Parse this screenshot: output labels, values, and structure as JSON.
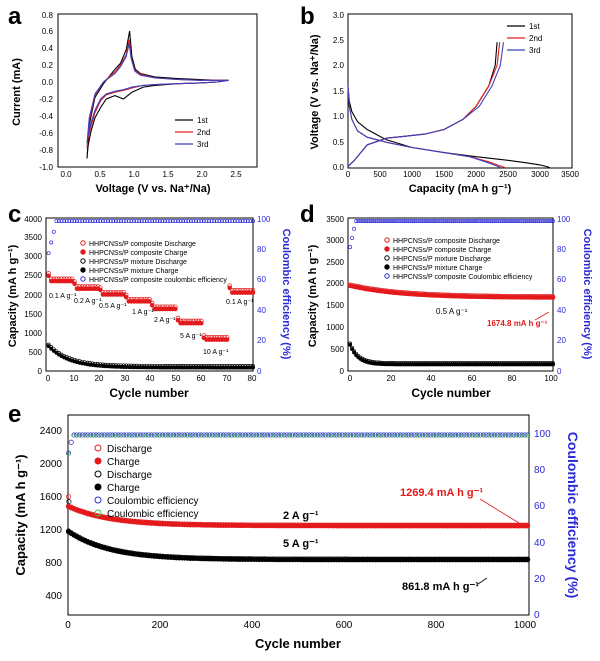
{
  "chart_data": [
    {
      "panel": "a",
      "type": "line",
      "xlabel": "Voltage (V vs. Na⁺/Na)",
      "ylabel": "Current (mA)",
      "xlim": [
        -0.5,
        3.0
      ],
      "ylim": [
        -1.0,
        0.8
      ],
      "xticks": [
        "0.0",
        "0.5",
        "1.0",
        "1.5",
        "2.0",
        "2.5"
      ],
      "yticks": [
        "-1.0",
        "-0.8",
        "-0.6",
        "-0.4",
        "-0.2",
        "0.0",
        "0.2",
        "0.4",
        "0.6",
        "0.8"
      ],
      "legend_position": "bottom-right",
      "series": [
        {
          "name": "1st",
          "color": "#000000",
          "x": [
            0.01,
            0.05,
            0.15,
            0.3,
            0.5,
            0.6,
            0.7,
            0.76,
            0.8,
            0.86,
            0.95,
            1.2,
            1.6,
            2.0,
            2.3,
            2.5,
            2.3,
            2.0,
            1.6,
            1.2,
            1.0,
            0.8,
            0.65,
            0.5,
            0.35,
            0.25,
            0.15,
            0.08,
            0.03,
            0.01
          ],
          "y": [
            -0.9,
            -0.5,
            -0.18,
            -0.02,
            0.15,
            0.22,
            0.38,
            0.6,
            0.3,
            0.15,
            0.1,
            0.06,
            0.04,
            0.03,
            0.02,
            0.02,
            0.0,
            -0.01,
            -0.02,
            -0.04,
            -0.06,
            -0.12,
            -0.2,
            -0.16,
            -0.2,
            -0.3,
            -0.42,
            -0.58,
            -0.75,
            -0.9
          ]
        },
        {
          "name": "2nd",
          "color": "#e31a1c",
          "x": [
            0.01,
            0.05,
            0.15,
            0.3,
            0.5,
            0.6,
            0.7,
            0.75,
            0.79,
            0.85,
            0.95,
            1.2,
            1.6,
            2.0,
            2.3,
            2.5,
            2.3,
            2.0,
            1.6,
            1.2,
            1.0,
            0.8,
            0.65,
            0.5,
            0.35,
            0.25,
            0.15,
            0.08,
            0.03,
            0.01
          ],
          "y": [
            -0.78,
            -0.45,
            -0.15,
            0.0,
            0.12,
            0.2,
            0.32,
            0.5,
            0.28,
            0.14,
            0.09,
            0.05,
            0.03,
            0.02,
            0.02,
            0.02,
            0.0,
            -0.01,
            -0.02,
            -0.03,
            -0.04,
            -0.07,
            -0.1,
            -0.12,
            -0.15,
            -0.22,
            -0.36,
            -0.52,
            -0.66,
            -0.78
          ]
        },
        {
          "name": "3rd",
          "color": "#3f3fbf",
          "x": [
            0.01,
            0.05,
            0.15,
            0.3,
            0.5,
            0.6,
            0.7,
            0.75,
            0.79,
            0.85,
            0.95,
            1.2,
            1.6,
            2.0,
            2.3,
            2.5,
            2.3,
            2.0,
            1.6,
            1.2,
            1.0,
            0.8,
            0.65,
            0.5,
            0.35,
            0.25,
            0.15,
            0.08,
            0.03,
            0.01
          ],
          "y": [
            -0.72,
            -0.42,
            -0.14,
            0.0,
            0.1,
            0.18,
            0.3,
            0.45,
            0.27,
            0.13,
            0.08,
            0.05,
            0.03,
            0.02,
            0.02,
            0.02,
            0.0,
            -0.01,
            -0.02,
            -0.03,
            -0.04,
            -0.06,
            -0.09,
            -0.11,
            -0.14,
            -0.2,
            -0.33,
            -0.48,
            -0.62,
            -0.72
          ]
        }
      ]
    },
    {
      "panel": "b",
      "type": "line",
      "xlabel": "Capacity (mA h g⁻¹)",
      "ylabel": "Voltage (V vs. Na⁺/Na)",
      "xlim": [
        0,
        3500
      ],
      "ylim": [
        0.0,
        3.0
      ],
      "xticks": [
        "0",
        "500",
        "1000",
        "1500",
        "2000",
        "2500",
        "3000",
        "3500"
      ],
      "yticks": [
        "0.0",
        "0.5",
        "1.0",
        "1.5",
        "2.0",
        "2.5",
        "3.0"
      ],
      "legend_position": "top-right",
      "series": [
        {
          "name": "1st",
          "color": "#000000",
          "x": [
            0,
            20,
            60,
            150,
            300,
            600,
            1000,
            1500,
            2000,
            2500,
            2800,
            3000,
            3100,
            3150,
            null,
            0,
            100,
            300,
            600,
            900,
            1200,
            1500,
            1800,
            2000,
            2200,
            2300,
            2330
          ],
          "y": [
            1.6,
            1.3,
            1.1,
            0.9,
            0.75,
            0.55,
            0.4,
            0.3,
            0.22,
            0.15,
            0.1,
            0.06,
            0.03,
            0.01,
            null,
            0.03,
            0.15,
            0.45,
            0.58,
            0.62,
            0.66,
            0.75,
            0.95,
            1.2,
            1.6,
            2.0,
            2.45
          ]
        },
        {
          "name": "2nd",
          "color": "#e31a1c",
          "x": [
            0,
            20,
            60,
            150,
            300,
            600,
            1000,
            1500,
            1900,
            2200,
            2350,
            2450,
            null,
            0,
            100,
            300,
            600,
            900,
            1200,
            1500,
            1800,
            2000,
            2200,
            2330,
            2370
          ],
          "y": [
            1.6,
            1.2,
            0.95,
            0.72,
            0.6,
            0.5,
            0.4,
            0.3,
            0.22,
            0.12,
            0.05,
            0.01,
            null,
            0.03,
            0.15,
            0.45,
            0.58,
            0.62,
            0.66,
            0.75,
            0.95,
            1.2,
            1.6,
            2.0,
            2.45
          ]
        },
        {
          "name": "3rd",
          "color": "#3f3fbf",
          "x": [
            0,
            20,
            60,
            150,
            300,
            600,
            1000,
            1500,
            1900,
            2150,
            2300,
            2380,
            null,
            0,
            100,
            300,
            600,
            900,
            1200,
            1500,
            1800,
            2050,
            2250,
            2380,
            2430
          ],
          "y": [
            1.6,
            1.2,
            0.95,
            0.72,
            0.6,
            0.5,
            0.4,
            0.3,
            0.22,
            0.12,
            0.05,
            0.01,
            null,
            0.03,
            0.15,
            0.45,
            0.58,
            0.62,
            0.66,
            0.75,
            0.95,
            1.2,
            1.6,
            2.0,
            2.45
          ]
        }
      ]
    },
    {
      "panel": "c",
      "type": "scatter",
      "xlabel": "Cycle number",
      "ylabel": "Capacity (mA h g⁻¹)",
      "y2label": "Coulombic efficiency (%)",
      "xlim": [
        0,
        80
      ],
      "ylim": [
        0,
        4000
      ],
      "y2lim": [
        0,
        100
      ],
      "xticks": [
        "0",
        "10",
        "20",
        "30",
        "40",
        "50",
        "60",
        "70",
        "80"
      ],
      "yticks": [
        "0",
        "500",
        "1000",
        "1500",
        "2000",
        "2500",
        "3000",
        "3500",
        "4000"
      ],
      "y2ticks": [
        "0",
        "20",
        "40",
        "60",
        "80",
        "100"
      ],
      "legend_position": "top-left",
      "legend": [
        {
          "label": "HHPCNSs/P composite Discharge",
          "marker": "open-circle",
          "color": "#e31a1c"
        },
        {
          "label": "HHPCNSs/P composite Charge",
          "marker": "filled-circle",
          "color": "#e31a1c"
        },
        {
          "label": "HHPCNSs/P mixture Discharge",
          "marker": "open-circle",
          "color": "#000000"
        },
        {
          "label": "HHPCNSs/P mixture Charge",
          "marker": "filled-circle",
          "color": "#000000"
        },
        {
          "label": "HHPCNSs/P composite coulombic efficiency",
          "marker": "open-circle",
          "color": "#2b2bd6"
        }
      ],
      "annotations": [
        "0.1 A g⁻¹",
        "0.2 A g⁻¹",
        "0.5 A g⁻¹",
        "1 A g⁻¹",
        "2 A g⁻¹",
        "5 A g⁻¹",
        "10 A g⁻¹",
        "0.1 A g⁻¹"
      ],
      "rate_segments": [
        {
          "start": 1,
          "end": 10,
          "capacity": 2350
        },
        {
          "start": 11,
          "end": 20,
          "capacity": 2150
        },
        {
          "start": 21,
          "end": 30,
          "capacity": 2000
        },
        {
          "start": 31,
          "end": 40,
          "capacity": 1820
        },
        {
          "start": 41,
          "end": 50,
          "capacity": 1620
        },
        {
          "start": 51,
          "end": 60,
          "capacity": 1250
        },
        {
          "start": 61,
          "end": 70,
          "capacity": 820
        },
        {
          "start": 71,
          "end": 80,
          "capacity": 2050
        }
      ],
      "mixture_capacity_start": 650,
      "mixture_capacity_end": 90,
      "coulombic_efficiency_plateau": 98
    },
    {
      "panel": "d",
      "type": "scatter",
      "xlabel": "Cycle number",
      "ylabel": "Capacity (mA h g⁻¹)",
      "y2label": "Coulombic efficiency (%)",
      "xlim": [
        0,
        100
      ],
      "ylim": [
        0,
        3500
      ],
      "y2lim": [
        0,
        100
      ],
      "xticks": [
        "0",
        "20",
        "40",
        "60",
        "80",
        "100"
      ],
      "yticks": [
        "0",
        "500",
        "1000",
        "1500",
        "2000",
        "2500",
        "3000",
        "3500"
      ],
      "y2ticks": [
        "0",
        "20",
        "40",
        "60",
        "80",
        "100"
      ],
      "legend_position": "top-left",
      "legend": [
        {
          "label": "HHPCNSs/P composite Discharge",
          "marker": "open-circle",
          "color": "#e31a1c"
        },
        {
          "label": "HHPCNSs/P composite Charge",
          "marker": "filled-circle",
          "color": "#e31a1c"
        },
        {
          "label": "HHPCNSs/P mixture Discharge",
          "marker": "open-circle",
          "color": "#000000"
        },
        {
          "label": "HHPCNSs/P mixture Charge",
          "marker": "filled-circle",
          "color": "#000000"
        },
        {
          "label": "HHPCNSs/P composite Coulombic efficiency",
          "marker": "open-circle",
          "color": "#2b2bd6"
        }
      ],
      "annotations": [
        "0.5 A g⁻¹",
        "1674.8 mA h g⁻¹"
      ],
      "composite_capacity_start": 1950,
      "composite_capacity_end": 1674.8,
      "mixture_capacity_start": 600,
      "mixture_capacity_end": 150,
      "coulombic_efficiency_plateau": 98
    },
    {
      "panel": "e",
      "type": "scatter",
      "xlabel": "Cycle number",
      "ylabel": "Capacity (mA h g⁻¹)",
      "y2label": "Coulombic efficiency (%)",
      "xlim": [
        0,
        1000
      ],
      "ylim": [
        200,
        2600
      ],
      "y2lim": [
        0,
        110
      ],
      "xticks": [
        "0",
        "200",
        "400",
        "600",
        "800",
        "1000"
      ],
      "yticks": [
        "400",
        "800",
        "1200",
        "1600",
        "2000",
        "2400"
      ],
      "y2ticks": [
        "0",
        "20",
        "40",
        "60",
        "80",
        "100"
      ],
      "legend_position": "top-left",
      "legend": [
        {
          "label": "Discharge",
          "marker": "open-circle",
          "color": "#e31a1c"
        },
        {
          "label": "Charge",
          "marker": "filled-circle",
          "color": "#e31a1c"
        },
        {
          "label": "Discharge",
          "marker": "open-circle",
          "color": "#000000"
        },
        {
          "label": "Charge",
          "marker": "filled-circle",
          "color": "#000000"
        },
        {
          "label": "Coulombic efficiency",
          "marker": "open-circle",
          "color": "#2b2bd6"
        },
        {
          "label": "Coulombic efficiency",
          "marker": "open-circle",
          "color": "#3cc43c"
        }
      ],
      "annotations": [
        "2 A g⁻¹",
        "5 A g⁻¹",
        "1269.4 mA h g⁻¹",
        "861.8 mA h g⁻¹"
      ],
      "series_2A_capacity_start": 1500,
      "series_2A_capacity_end": 1269.4,
      "series_5A_capacity_start": 1200,
      "series_5A_capacity_end": 861.8,
      "coulombic_efficiency_plateau": 99
    }
  ],
  "panels": {
    "a": {
      "letter": "a",
      "xlabel": "Voltage (V vs. Na⁺/Na)",
      "ylabel": "Current (mA)",
      "legend": [
        "1st",
        "2nd",
        "3rd"
      ]
    },
    "b": {
      "letter": "b",
      "xlabel": "Capacity (mA h g⁻¹)",
      "ylabel": "Voltage (V vs. Na⁺/Na)",
      "legend": [
        "1st",
        "2nd",
        "3rd"
      ]
    },
    "c": {
      "letter": "c",
      "xlabel": "Cycle number",
      "ylabel": "Capacity (mA h g⁻¹)",
      "y2label": "Coulombic efficiency (%)",
      "legend": [
        "HHPCNSs/P composite Discharge",
        "HHPCNSs/P composite Charge",
        "HHPCNSs/P mixture Discharge",
        "HHPCNSs/P mixture Charge",
        "HHPCNSs/P composite coulombic efficiency"
      ],
      "rates": [
        "0.1 A g⁻¹",
        "0.2 A g⁻¹",
        "0.5 A g⁻¹",
        "1 A g⁻¹",
        "2 A g⁻¹",
        "5 A g⁻¹",
        "10 A g⁻¹",
        "0.1 A g⁻¹"
      ]
    },
    "d": {
      "letter": "d",
      "xlabel": "Cycle number",
      "ylabel": "Capacity (mA h g⁻¹)",
      "y2label": "Coulombic efficiency (%)",
      "legend": [
        "HHPCNSs/P composite Discharge",
        "HHPCNSs/P composite Charge",
        "HHPCNSs/P mixture Discharge",
        "HHPCNSs/P mixture Charge",
        "HHPCNSs/P composite Coulombic efficiency"
      ],
      "rate": "0.5 A g⁻¹",
      "final_capacity": "1674.8 mA h g⁻¹"
    },
    "e": {
      "letter": "e",
      "xlabel": "Cycle number",
      "ylabel": "Capacity (mA h g⁻¹)",
      "y2label": "Coulombic efficiency (%)",
      "legend": [
        "Discharge",
        "Charge",
        "Discharge",
        "Charge",
        "Coulombic efficiency",
        "Coulombic efficiency"
      ],
      "rate_2A": "2 A g⁻¹",
      "rate_5A": "5 A g⁻¹",
      "final_2A": "1269.4 mA h g⁻¹",
      "final_5A": "861.8 mA h g⁻¹"
    }
  },
  "colors": {
    "axis": "#000000",
    "composite": "#e31a1c",
    "mixture": "#000000",
    "efficiency": "#2b2bd6",
    "efficiency_alt": "#3cc43c",
    "third": "#3f3fbf"
  }
}
